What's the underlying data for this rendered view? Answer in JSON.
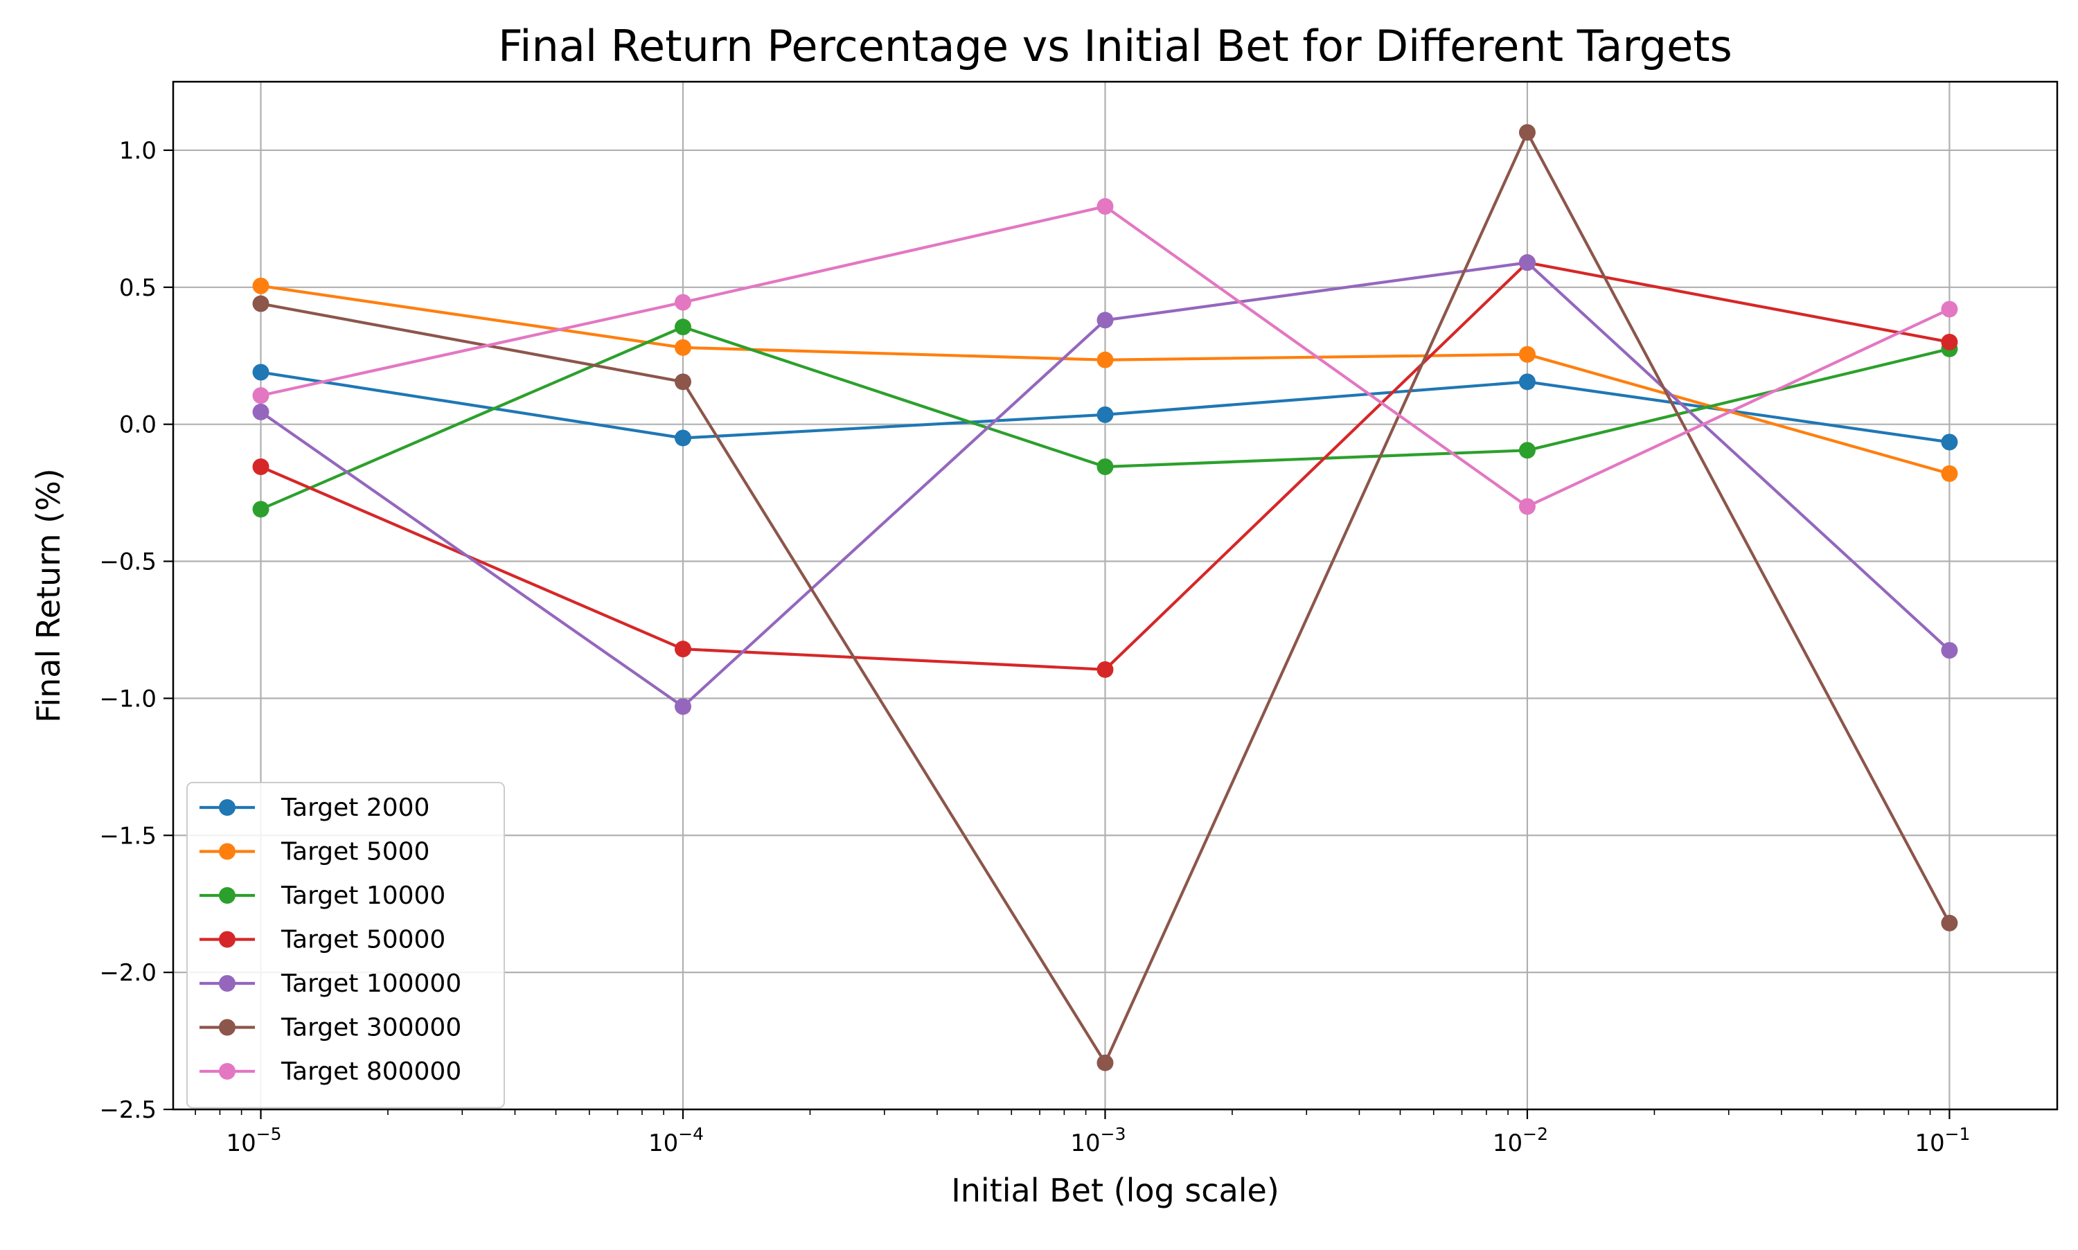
{
  "chart_data": {
    "type": "line",
    "title": "Final Return Percentage vs Initial Bet for Different Targets",
    "xlabel": "Initial Bet (log scale)",
    "ylabel": "Final Return (%)",
    "xscale": "log",
    "xlim": [
      6.2e-06,
      0.18
    ],
    "ylim": [
      -2.5,
      1.25
    ],
    "grid": true,
    "legend_position": "lower-left",
    "x": [
      1e-05,
      0.0001,
      0.001,
      0.01,
      0.1
    ],
    "x_tick_labels": [
      {
        "base": "10",
        "exp": "−5"
      },
      {
        "base": "10",
        "exp": "−4"
      },
      {
        "base": "10",
        "exp": "−3"
      },
      {
        "base": "10",
        "exp": "−2"
      },
      {
        "base": "10",
        "exp": "−1"
      }
    ],
    "y_ticks": [
      1.0,
      0.5,
      0.0,
      -0.5,
      -1.0,
      -1.5,
      -2.0,
      -2.5
    ],
    "y_tick_labels": [
      "1.0",
      "0.5",
      "0.0",
      "−0.5",
      "−1.0",
      "−1.5",
      "−2.0",
      "−2.5"
    ],
    "series": [
      {
        "name": "Target 2000",
        "color": "#1f77b4",
        "values": [
          0.19,
          -0.05,
          0.035,
          0.155,
          -0.065
        ]
      },
      {
        "name": "Target 5000",
        "color": "#ff7f0e",
        "values": [
          0.505,
          0.28,
          0.235,
          0.255,
          -0.18
        ]
      },
      {
        "name": "Target 10000",
        "color": "#2ca02c",
        "values": [
          -0.31,
          0.355,
          -0.155,
          -0.095,
          0.275
        ]
      },
      {
        "name": "Target 50000",
        "color": "#d62728",
        "values": [
          -0.155,
          -0.82,
          -0.895,
          0.59,
          0.3
        ]
      },
      {
        "name": "Target 100000",
        "color": "#9467bd",
        "values": [
          0.045,
          -1.03,
          0.38,
          0.59,
          -0.825
        ]
      },
      {
        "name": "Target 300000",
        "color": "#8c564b",
        "values": [
          0.44,
          0.155,
          -2.33,
          1.065,
          -1.82
        ]
      },
      {
        "name": "Target 800000",
        "color": "#e377c2",
        "values": [
          0.105,
          0.445,
          0.795,
          -0.3,
          0.42
        ]
      }
    ]
  }
}
